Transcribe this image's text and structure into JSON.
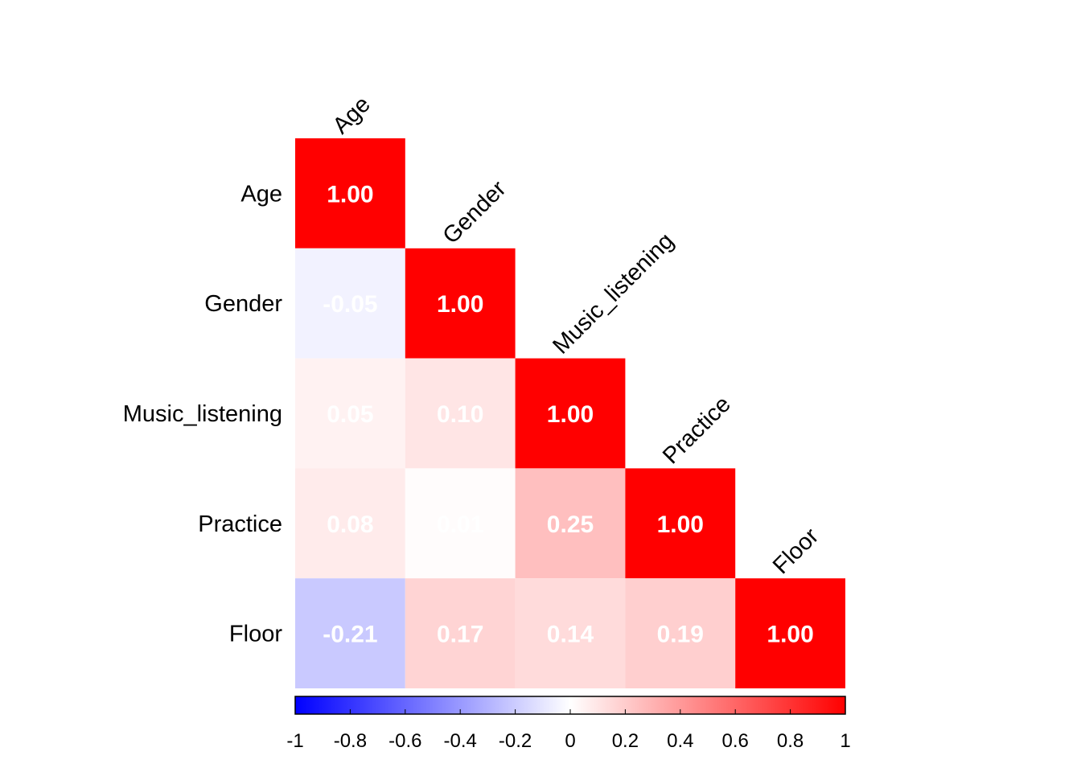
{
  "chart_data": {
    "type": "heatmap",
    "variables": [
      "Age",
      "Gender",
      "Music_listening",
      "Practice",
      "Floor"
    ],
    "matrix": [
      [
        1.0,
        null,
        null,
        null,
        null
      ],
      [
        -0.05,
        1.0,
        null,
        null,
        null
      ],
      [
        0.05,
        0.1,
        1.0,
        null,
        null
      ],
      [
        0.08,
        0.01,
        0.25,
        1.0,
        null
      ],
      [
        -0.21,
        0.17,
        0.14,
        0.19,
        1.0
      ]
    ],
    "labels": [
      [
        "1.00",
        "",
        "",
        "",
        ""
      ],
      [
        "-0.05",
        "1.00",
        "",
        "",
        ""
      ],
      [
        "0.05",
        "0.10",
        "1.00",
        "",
        ""
      ],
      [
        "0.08",
        "0.01",
        "0.25",
        "1.00",
        ""
      ],
      [
        "-0.21",
        "0.17",
        "0.14",
        "0.19",
        "1.00"
      ]
    ],
    "triangle": "lower",
    "colorbar": {
      "range": [
        -1,
        1
      ],
      "ticks": [
        "-1",
        "-0.8",
        "-0.6",
        "-0.4",
        "-0.2",
        "0",
        "0.2",
        "0.4",
        "0.6",
        "0.8",
        "1"
      ],
      "colors": [
        "#0000ff",
        "#ffffff",
        "#ff0000"
      ],
      "position": "bottom"
    },
    "title": "",
    "xlabel": "",
    "ylabel": ""
  }
}
